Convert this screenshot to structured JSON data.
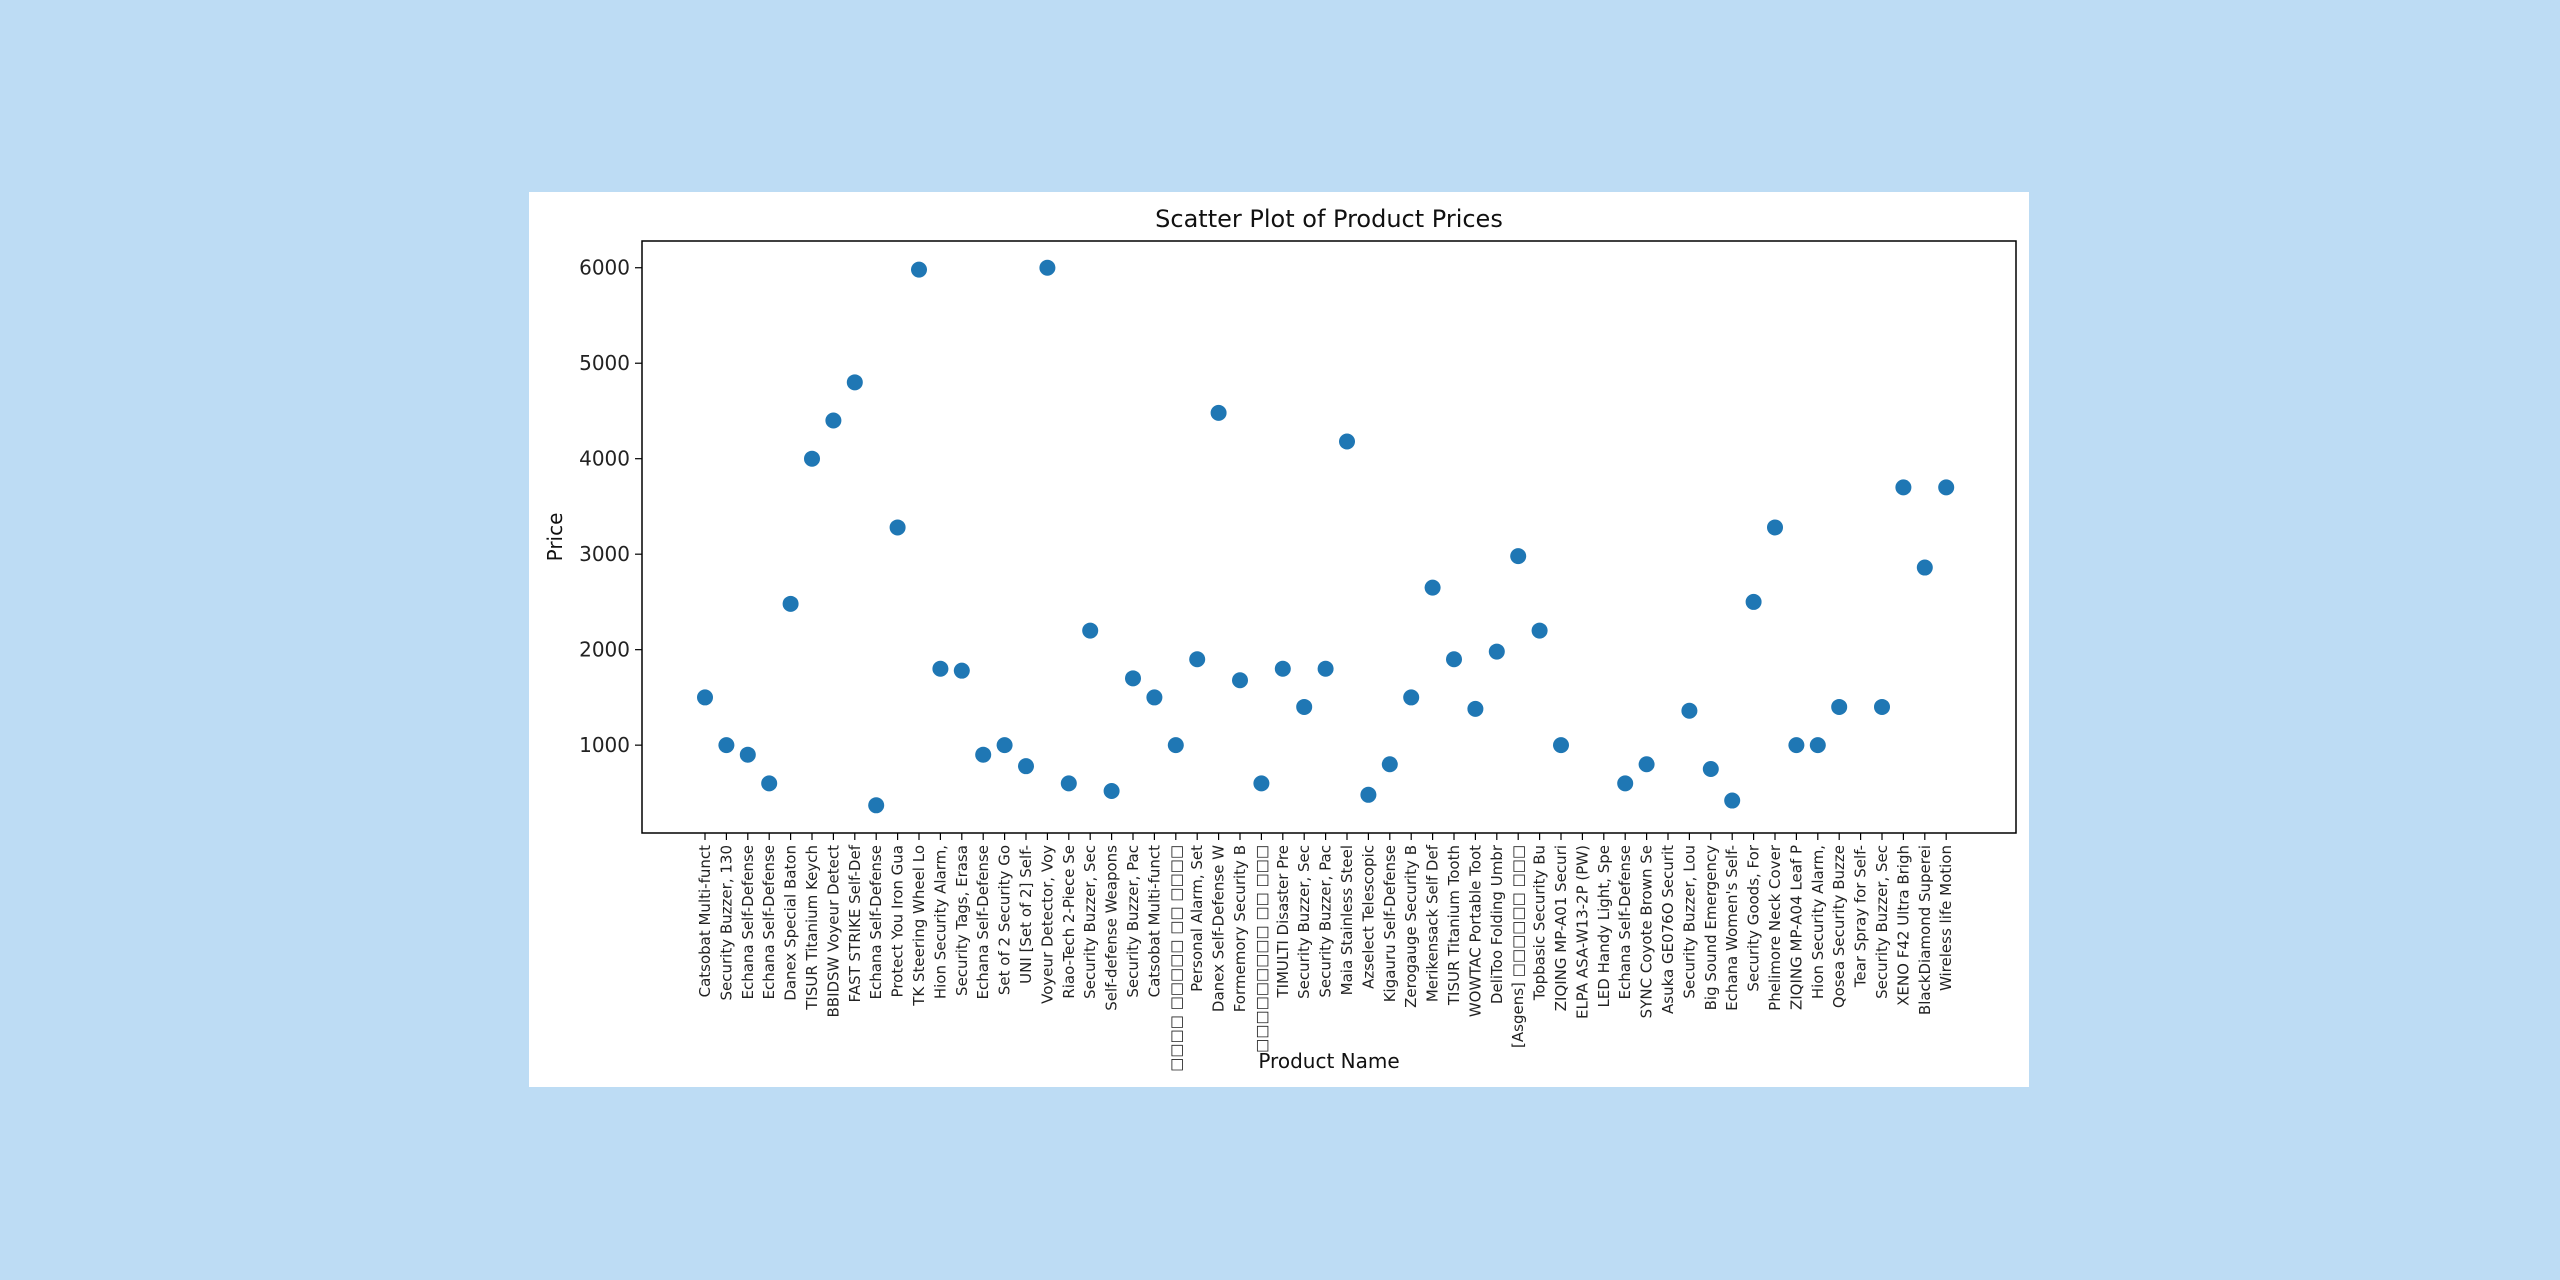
{
  "chart_data": {
    "type": "scatter",
    "title": "Scatter Plot of Product Prices",
    "xlabel": "Product Name",
    "ylabel": "Price",
    "ylim": [
      80,
      6280
    ],
    "yticks": [
      1000,
      2000,
      3000,
      4000,
      5000,
      6000
    ],
    "grid": false,
    "marker_color": "#1f77b4",
    "categories": [
      "Catsobat Multi-funct",
      "Security Buzzer, 130",
      "Echana Self-Defense",
      "Echana Self-Defense",
      "Danex Special Baton",
      "TISUR Titanium Keych",
      "BBIDSW Voyeur Detect",
      "FAST STRIKE Self-Def",
      "Echana Self-Defense",
      "Protect You Iron Gua",
      "TK Steering Wheel Lo",
      "Hion Security Alarm,",
      "Security Tags, Erasa",
      "Echana Self-Defense",
      "Set of 2 Security Go",
      "UNI [Set of 2] Self-",
      "Voyeur Detector, Voy",
      "Riao-Tech 2-Piece Se",
      "Security Buzzer, Sec",
      "Self-defense Weapons",
      "Security Buzzer, Pac",
      "Catsobat Multi-funct",
      "□□□□ □□□□□ □□ □□□□",
      "Personal Alarm, Set",
      "Danex Self-Defense W",
      "Formemory Security B",
      "□□□□□□□□□ □□ □□□",
      "TIMULTI Disaster Pre",
      "Security Buzzer, Sec",
      "Security Buzzer, Pac",
      "Maia Stainless Steel",
      "Azselect Telescopic",
      "Kigauru Self-Defense",
      "Zerogauge Security B",
      "Merikensack Self Def",
      "TISUR Titanium Tooth",
      "WOWTAC Portable Toot",
      "DeliToo Folding Umbr",
      "[Asgens] □□□□□□ □□□",
      "Topbasic Security Bu",
      "ZIQING MP-A01 Securi",
      "ELPA ASA-W13-2P (PW)",
      "LED Handy Light, Spe",
      "Echana Self-Defense",
      "SYNC Coyote Brown Se",
      "Asuka GE076O Securit",
      "Security Buzzer, Lou",
      "Big Sound Emergency",
      "Echana Women's Self-",
      "Security Goods, For",
      "Phelimore Neck Cover",
      "ZIQING MP-A04 Leaf P",
      "Hion Security Alarm,",
      "Qosea Security Buzze",
      "Tear Spray for Self-",
      "Security Buzzer, Sec",
      "XENO F42 Ultra Brigh",
      "BlackDiamond Superei",
      "Wireless life Motion"
    ],
    "points": [
      {
        "x": 0,
        "y": 1500
      },
      {
        "x": 1,
        "y": 1000
      },
      {
        "x": 2,
        "y": 900
      },
      {
        "x": 3,
        "y": 600
      },
      {
        "x": 4,
        "y": 2480
      },
      {
        "x": 5,
        "y": 4000
      },
      {
        "x": 6,
        "y": 4400
      },
      {
        "x": 7,
        "y": 4800
      },
      {
        "x": 8,
        "y": 370
      },
      {
        "x": 9,
        "y": 3280
      },
      {
        "x": 10,
        "y": 5980
      },
      {
        "x": 11,
        "y": 1800
      },
      {
        "x": 12,
        "y": 1780
      },
      {
        "x": 13,
        "y": 900
      },
      {
        "x": 14,
        "y": 1000
      },
      {
        "x": 15,
        "y": 780
      },
      {
        "x": 16,
        "y": 6000
      },
      {
        "x": 17,
        "y": 600
      },
      {
        "x": 18,
        "y": 2200
      },
      {
        "x": 19,
        "y": 520
      },
      {
        "x": 20,
        "y": 1700
      },
      {
        "x": 21,
        "y": 1500
      },
      {
        "x": 22,
        "y": 1000
      },
      {
        "x": 23,
        "y": 1900
      },
      {
        "x": 24,
        "y": 4480
      },
      {
        "x": 25,
        "y": 1680
      },
      {
        "x": 26,
        "y": 600
      },
      {
        "x": 27,
        "y": 1800
      },
      {
        "x": 28,
        "y": 1400
      },
      {
        "x": 29,
        "y": 1800
      },
      {
        "x": 30,
        "y": 4180
      },
      {
        "x": 31,
        "y": 480
      },
      {
        "x": 32,
        "y": 800
      },
      {
        "x": 33,
        "y": 1500
      },
      {
        "x": 34,
        "y": 2650
      },
      {
        "x": 35,
        "y": 1900
      },
      {
        "x": 36,
        "y": 1380
      },
      {
        "x": 37,
        "y": 1980
      },
      {
        "x": 38,
        "y": 2980
      },
      {
        "x": 39,
        "y": 2200
      },
      {
        "x": 40,
        "y": 1000
      },
      {
        "x": 43,
        "y": 600
      },
      {
        "x": 44,
        "y": 800
      },
      {
        "x": 46,
        "y": 1360
      },
      {
        "x": 47,
        "y": 750
      },
      {
        "x": 48,
        "y": 420
      },
      {
        "x": 49,
        "y": 2500
      },
      {
        "x": 50,
        "y": 3280
      },
      {
        "x": 51,
        "y": 1000
      },
      {
        "x": 52,
        "y": 1000
      },
      {
        "x": 53,
        "y": 1400
      },
      {
        "x": 55,
        "y": 1400
      },
      {
        "x": 56,
        "y": 3700
      },
      {
        "x": 57,
        "y": 2860
      },
      {
        "x": 58,
        "y": 3700
      }
    ]
  }
}
